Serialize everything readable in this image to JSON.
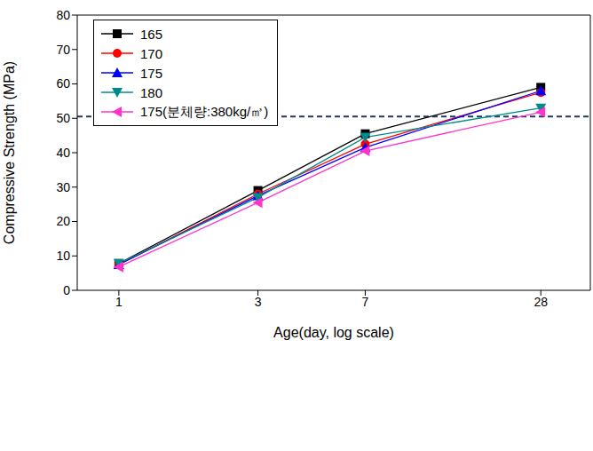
{
  "chart_data": {
    "type": "line",
    "x_label": "Age(day, log scale)",
    "y_label": "Compressive Strength (MPa)",
    "x": [
      1,
      3,
      7,
      28
    ],
    "log": "x",
    "xlim": [
      0.72,
      41.4
    ],
    "xticks": [
      1,
      3,
      7,
      28
    ],
    "ylim": [
      0,
      80
    ],
    "yticks": [
      0,
      10,
      20,
      30,
      40,
      50,
      60,
      70,
      80
    ],
    "grid": false,
    "legend": "upper left",
    "series": [
      {
        "name": "165",
        "color": "#000000",
        "marker": "square",
        "values": [
          7.8,
          29,
          45.5,
          59
        ]
      },
      {
        "name": "170",
        "color": "#ff0000",
        "marker": "circle",
        "values": [
          7.5,
          28,
          42.5,
          57.5
        ]
      },
      {
        "name": "175",
        "color": "#0000ff",
        "marker": "triangle-up",
        "values": [
          7.5,
          27.5,
          41.5,
          58
        ]
      },
      {
        "name": "180",
        "color": "#008b8b",
        "marker": "triangle-down",
        "values": [
          7.8,
          27,
          44.5,
          53
        ]
      },
      {
        "name": "175(분체량:380kg/㎥)",
        "color": "#ff33cc",
        "marker": "triangle-left",
        "values": [
          6.8,
          25.5,
          40.5,
          51.8
        ]
      }
    ],
    "reference_lines": [
      {
        "value": 50.5,
        "line_style": "dashed",
        "color": "#1f3864"
      }
    ]
  }
}
